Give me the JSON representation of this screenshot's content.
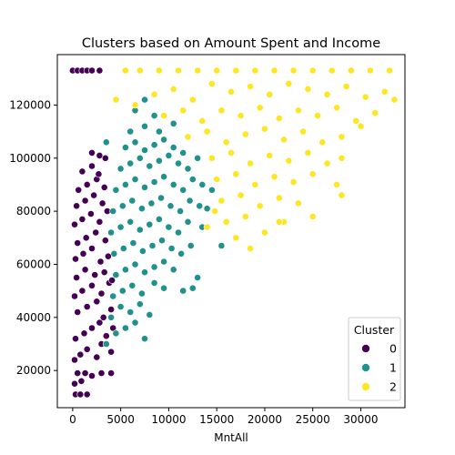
{
  "chart_data": {
    "type": "scatter",
    "title": "Clusters based on Amount Spent and Income",
    "xlabel": "MntAll",
    "ylabel": "",
    "xlim": [
      -1600,
      34600
    ],
    "ylim": [
      6000,
      139000
    ],
    "xticks": [
      0,
      5000,
      10000,
      15000,
      20000,
      25000,
      30000
    ],
    "yticks": [
      20000,
      40000,
      60000,
      80000,
      100000,
      120000
    ],
    "grid": false,
    "legend": {
      "title": "Cluster",
      "position": "lower-right"
    },
    "series": [
      {
        "name": "0",
        "color": "#440154",
        "points": [
          [
            0,
            133000
          ],
          [
            500,
            133000
          ],
          [
            1000,
            133000
          ],
          [
            1500,
            133000
          ],
          [
            2000,
            133000
          ],
          [
            2800,
            133000
          ],
          [
            300,
            11000
          ],
          [
            800,
            11000
          ],
          [
            1500,
            11000
          ],
          [
            200,
            15000
          ],
          [
            900,
            16000
          ],
          [
            500,
            19000
          ],
          [
            1300,
            19000
          ],
          [
            2000,
            18000
          ],
          [
            3000,
            19000
          ],
          [
            4000,
            19000
          ],
          [
            200,
            24000
          ],
          [
            800,
            26000
          ],
          [
            1500,
            28000
          ],
          [
            2500,
            25000
          ],
          [
            3000,
            30000
          ],
          [
            4000,
            27000
          ],
          [
            300,
            32000
          ],
          [
            1200,
            34000
          ],
          [
            2000,
            36000
          ],
          [
            2800,
            38000
          ],
          [
            3500,
            33000
          ],
          [
            4200,
            36000
          ],
          [
            500,
            42000
          ],
          [
            1500,
            44000
          ],
          [
            2500,
            46000
          ],
          [
            3200,
            40000
          ],
          [
            4000,
            43000
          ],
          [
            200,
            48000
          ],
          [
            1000,
            50000
          ],
          [
            2000,
            52000
          ],
          [
            3000,
            49000
          ],
          [
            3800,
            53000
          ],
          [
            400,
            55000
          ],
          [
            1300,
            58000
          ],
          [
            2300,
            56000
          ],
          [
            3300,
            57000
          ],
          [
            4100,
            54000
          ],
          [
            300,
            62000
          ],
          [
            1100,
            64000
          ],
          [
            2000,
            66000
          ],
          [
            2900,
            61000
          ],
          [
            3700,
            63000
          ],
          [
            500,
            68000
          ],
          [
            1400,
            70000
          ],
          [
            2400,
            72000
          ],
          [
            3400,
            69000
          ],
          [
            200,
            75000
          ],
          [
            1000,
            77000
          ],
          [
            1900,
            79000
          ],
          [
            2800,
            76000
          ],
          [
            3600,
            80000
          ],
          [
            400,
            82000
          ],
          [
            1300,
            84000
          ],
          [
            2200,
            86000
          ],
          [
            3100,
            83000
          ],
          [
            600,
            88000
          ],
          [
            1500,
            90000
          ],
          [
            2500,
            92000
          ],
          [
            3300,
            89000
          ],
          [
            1000,
            95000
          ],
          [
            2000,
            97000
          ],
          [
            2700,
            94000
          ],
          [
            2000,
            102000
          ],
          [
            2800,
            101000
          ],
          [
            3400,
            100000
          ]
        ]
      },
      {
        "name": "1",
        "color": "#21918c",
        "points": [
          [
            3500,
            30000
          ],
          [
            4500,
            34000
          ],
          [
            5500,
            36000
          ],
          [
            6500,
            38000
          ],
          [
            7500,
            32000
          ],
          [
            4000,
            40000
          ],
          [
            5000,
            44000
          ],
          [
            6000,
            42000
          ],
          [
            7000,
            45000
          ],
          [
            8000,
            41000
          ],
          [
            4200,
            48000
          ],
          [
            5200,
            50000
          ],
          [
            6200,
            52000
          ],
          [
            7200,
            49000
          ],
          [
            8500,
            53000
          ],
          [
            9500,
            51000
          ],
          [
            11500,
            50000
          ],
          [
            12500,
            51000
          ],
          [
            4500,
            56000
          ],
          [
            5500,
            58000
          ],
          [
            6500,
            60000
          ],
          [
            7500,
            57000
          ],
          [
            8500,
            59000
          ],
          [
            9500,
            61000
          ],
          [
            10500,
            58000
          ],
          [
            13000,
            55000
          ],
          [
            4300,
            64000
          ],
          [
            5300,
            66000
          ],
          [
            6300,
            68000
          ],
          [
            7300,
            65000
          ],
          [
            8300,
            67000
          ],
          [
            9300,
            69000
          ],
          [
            10300,
            66000
          ],
          [
            11300,
            64000
          ],
          [
            12300,
            67000
          ],
          [
            4000,
            72000
          ],
          [
            5000,
            74000
          ],
          [
            6000,
            76000
          ],
          [
            7000,
            73000
          ],
          [
            8000,
            75000
          ],
          [
            9000,
            77000
          ],
          [
            10000,
            74000
          ],
          [
            11000,
            72000
          ],
          [
            12000,
            76000
          ],
          [
            13500,
            74000
          ],
          [
            4200,
            80000
          ],
          [
            5200,
            82000
          ],
          [
            6200,
            84000
          ],
          [
            7200,
            81000
          ],
          [
            8200,
            83000
          ],
          [
            9200,
            85000
          ],
          [
            10200,
            82000
          ],
          [
            11200,
            80000
          ],
          [
            12200,
            84000
          ],
          [
            13200,
            82000
          ],
          [
            4500,
            88000
          ],
          [
            5500,
            90000
          ],
          [
            6500,
            92000
          ],
          [
            7500,
            89000
          ],
          [
            8500,
            91000
          ],
          [
            9500,
            93000
          ],
          [
            10500,
            90000
          ],
          [
            11500,
            88000
          ],
          [
            12500,
            92000
          ],
          [
            13500,
            90000
          ],
          [
            14500,
            88000
          ],
          [
            5000,
            96000
          ],
          [
            6000,
            98000
          ],
          [
            7000,
            100000
          ],
          [
            8000,
            97000
          ],
          [
            9000,
            99000
          ],
          [
            10000,
            101000
          ],
          [
            11000,
            98000
          ],
          [
            12000,
            96000
          ],
          [
            13000,
            100000
          ],
          [
            3500,
            106000
          ],
          [
            5500,
            104000
          ],
          [
            6500,
            106000
          ],
          [
            7500,
            103000
          ],
          [
            8500,
            105000
          ],
          [
            9500,
            107000
          ],
          [
            10500,
            104000
          ],
          [
            11500,
            102000
          ],
          [
            6000,
            110000
          ],
          [
            7500,
            112000
          ],
          [
            9000,
            110000
          ],
          [
            10500,
            113000
          ],
          [
            6500,
            118000
          ],
          [
            7500,
            122000
          ],
          [
            8500,
            116000
          ],
          [
            15500,
            67000
          ],
          [
            14000,
            81000
          ]
        ]
      },
      {
        "name": "2",
        "color": "#fde725",
        "points": [
          [
            5500,
            133000
          ],
          [
            7000,
            133000
          ],
          [
            9000,
            133000
          ],
          [
            11000,
            133000
          ],
          [
            13000,
            133000
          ],
          [
            15000,
            133000
          ],
          [
            17000,
            133000
          ],
          [
            19000,
            133000
          ],
          [
            21000,
            133000
          ],
          [
            23000,
            133000
          ],
          [
            25000,
            133000
          ],
          [
            27000,
            133000
          ],
          [
            29000,
            133000
          ],
          [
            31000,
            133000
          ],
          [
            33000,
            133000
          ],
          [
            4500,
            122000
          ],
          [
            6500,
            120000
          ],
          [
            8500,
            124000
          ],
          [
            10500,
            126000
          ],
          [
            12500,
            122000
          ],
          [
            14500,
            128000
          ],
          [
            16500,
            125000
          ],
          [
            18500,
            127000
          ],
          [
            20500,
            124000
          ],
          [
            22500,
            128000
          ],
          [
            24500,
            126000
          ],
          [
            26500,
            124000
          ],
          [
            28500,
            127000
          ],
          [
            30500,
            123000
          ],
          [
            32500,
            125000
          ],
          [
            33500,
            122000
          ],
          [
            9500,
            116000
          ],
          [
            11500,
            118000
          ],
          [
            13500,
            114000
          ],
          [
            15500,
            118000
          ],
          [
            17500,
            116000
          ],
          [
            19500,
            119000
          ],
          [
            21500,
            115000
          ],
          [
            23500,
            118000
          ],
          [
            25500,
            116000
          ],
          [
            27500,
            119000
          ],
          [
            29500,
            114000
          ],
          [
            31500,
            117000
          ],
          [
            12000,
            108000
          ],
          [
            14000,
            110000
          ],
          [
            16000,
            106000
          ],
          [
            18000,
            109000
          ],
          [
            20000,
            111000
          ],
          [
            22000,
            107000
          ],
          [
            24000,
            110000
          ],
          [
            26000,
            106000
          ],
          [
            28000,
            108000
          ],
          [
            30000,
            112000
          ],
          [
            14500,
            100000
          ],
          [
            16500,
            102000
          ],
          [
            18500,
            98000
          ],
          [
            20500,
            101000
          ],
          [
            22500,
            99000
          ],
          [
            24500,
            102000
          ],
          [
            26500,
            98000
          ],
          [
            28000,
            100000
          ],
          [
            15000,
            92000
          ],
          [
            17000,
            94000
          ],
          [
            19000,
            90000
          ],
          [
            21000,
            93000
          ],
          [
            23000,
            91000
          ],
          [
            25000,
            94000
          ],
          [
            27500,
            90000
          ],
          [
            15500,
            84000
          ],
          [
            17500,
            86000
          ],
          [
            19500,
            82000
          ],
          [
            21500,
            85000
          ],
          [
            23500,
            83000
          ],
          [
            28000,
            86000
          ],
          [
            16000,
            76000
          ],
          [
            18000,
            78000
          ],
          [
            22000,
            76000
          ],
          [
            25000,
            78000
          ],
          [
            17000,
            70000
          ],
          [
            20000,
            72000
          ],
          [
            18500,
            66000
          ],
          [
            14000,
            74000
          ],
          [
            14800,
            80000
          ],
          [
            21500,
            76000
          ]
        ]
      }
    ]
  }
}
